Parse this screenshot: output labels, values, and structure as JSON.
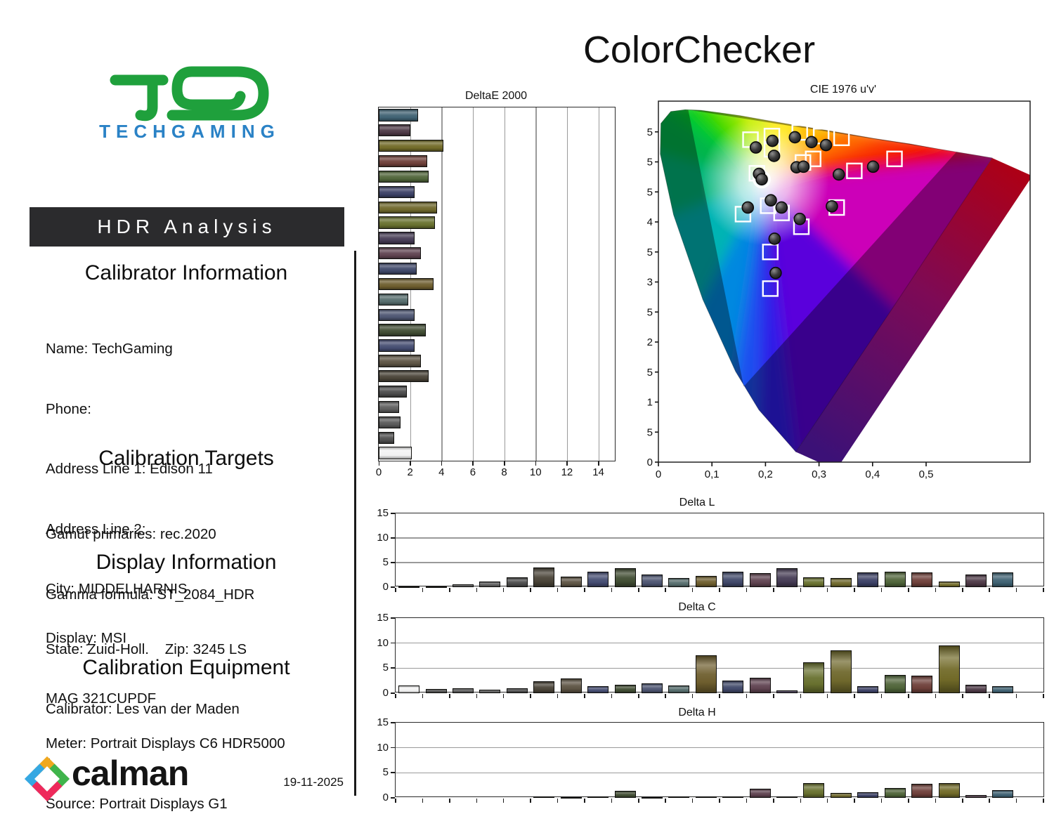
{
  "report_title": "ColorChecker",
  "logo": {
    "brand": "TECHGAMING",
    "mark_color": "#1fa03c",
    "text_color": "#2a82c6"
  },
  "banner": {
    "label": "HDR Analysis",
    "bg": "#2b2b2d"
  },
  "sections": {
    "calibrator": {
      "heading": "Calibrator Information",
      "lines": [
        "Name: TechGaming",
        "Phone:",
        "Address Line 1: Edison 11",
        "Address Line 2:",
        "City: MIDDELHARNIS",
        "State: Zuid-Holl.    Zip: 3245 LS",
        "Calibrator: Les van der Maden"
      ]
    },
    "targets": {
      "heading": "Calibration Targets",
      "lines": [
        "Gamut primaries: rec.2020",
        "Gamma formula: ST_2084_HDR"
      ]
    },
    "display": {
      "heading": "Display Information",
      "lines": [
        "Display: MSI",
        "MAG 321CUPDF",
        "-"
      ]
    },
    "equipment": {
      "heading": "Calibration Equipment",
      "lines": [
        "Meter: Portrait Displays C6 HDR5000",
        "Source: Portrait Displays G1"
      ]
    }
  },
  "footer": {
    "brand": "calman",
    "date": "19-11-2025",
    "icon_colors": {
      "top": "#f0a81e",
      "left": "#35a8e2",
      "right": "#3fb44b",
      "bottom": "#ee2a5b"
    }
  },
  "patches": {
    "colors": [
      "#f2f2f2",
      "#4f4f4f",
      "#595959",
      "#5e5e5e",
      "#4b4b4b",
      "#4a4438",
      "#5d5444",
      "#454d72",
      "#414d33",
      "#4d5571",
      "#566d6d",
      "#6e5e2e",
      "#404869",
      "#5f4350",
      "#463c55",
      "#68702f",
      "#6f682c",
      "#3c4166",
      "#50653a",
      "#6e403a",
      "#716a28",
      "#4e3a47",
      "#3f6273"
    ]
  },
  "chart_data": [
    {
      "id": "delta_e_2000",
      "type": "bar",
      "orientation": "horizontal",
      "title": "DeltaE 2000",
      "xlim": [
        0,
        15.05
      ],
      "x_ticks": [
        "0",
        "2",
        "4",
        "6",
        "8",
        "10",
        "12",
        "14"
      ],
      "x_tick_values": [
        0,
        2,
        4,
        6,
        8,
        10,
        12,
        14
      ],
      "grid": true,
      "display_order": "reversed-patches",
      "values_by_patch": [
        2.1,
        1.0,
        1.4,
        1.3,
        1.8,
        3.2,
        2.7,
        2.3,
        3.0,
        2.3,
        1.9,
        3.5,
        2.4,
        2.7,
        2.3,
        3.6,
        3.7,
        2.3,
        3.2,
        3.1,
        4.1,
        2.0,
        2.5
      ]
    },
    {
      "id": "cie_1976_uv",
      "type": "scatter",
      "title": "CIE 1976 u'v'",
      "xlim": [
        0,
        0.694
      ],
      "ylim": [
        0,
        0.601
      ],
      "x_tick_labels": [
        "0",
        "0,1",
        "0,2",
        "0,3",
        "0,4",
        "0,5"
      ],
      "y_tick_labels": [
        "0",
        "0,05",
        "0,1",
        "0,15",
        "0,2",
        "0,25",
        "0,3",
        "0,35",
        "0,4",
        "0,45",
        "0,5",
        "0,55"
      ],
      "gamut": "rec.2020",
      "gamut_triangle": [
        [
          0.0556,
          0.5868
        ],
        [
          0.5566,
          0.5165
        ],
        [
          0.1593,
          0.1258
        ]
      ],
      "white_point": [
        0.193,
        0.471
      ],
      "targets": [
        [
          0.172,
          0.537
        ],
        [
          0.212,
          0.543
        ],
        [
          0.264,
          0.549
        ],
        [
          0.304,
          0.543
        ],
        [
          0.342,
          0.54
        ],
        [
          0.212,
          0.521
        ],
        [
          0.27,
          0.499
        ],
        [
          0.289,
          0.505
        ],
        [
          0.366,
          0.485
        ],
        [
          0.441,
          0.505
        ],
        [
          0.184,
          0.481
        ],
        [
          0.205,
          0.427
        ],
        [
          0.158,
          0.413
        ],
        [
          0.23,
          0.415
        ],
        [
          0.267,
          0.392
        ],
        [
          0.333,
          0.424
        ],
        [
          0.209,
          0.35
        ],
        [
          0.209,
          0.289
        ]
      ],
      "measurements": [
        [
          0.182,
          0.524
        ],
        [
          0.213,
          0.535
        ],
        [
          0.216,
          0.51
        ],
        [
          0.255,
          0.541
        ],
        [
          0.286,
          0.533
        ],
        [
          0.313,
          0.528
        ],
        [
          0.258,
          0.491
        ],
        [
          0.271,
          0.492
        ],
        [
          0.337,
          0.479
        ],
        [
          0.401,
          0.492
        ],
        [
          0.188,
          0.48
        ],
        [
          0.193,
          0.471
        ],
        [
          0.21,
          0.436
        ],
        [
          0.167,
          0.424
        ],
        [
          0.23,
          0.424
        ],
        [
          0.264,
          0.405
        ],
        [
          0.324,
          0.426
        ],
        [
          0.217,
          0.372
        ],
        [
          0.219,
          0.315
        ]
      ]
    },
    {
      "id": "delta_l",
      "type": "bar",
      "title": "Delta L",
      "ylim": [
        0,
        15
      ],
      "y_ticks": [
        "0",
        "5",
        "10",
        "15"
      ],
      "slots": 24,
      "values": [
        0.05,
        0.1,
        0.55,
        1.2,
        2.0,
        4.0,
        2.2,
        3.1,
        3.8,
        2.6,
        1.9,
        2.3,
        3.1,
        2.8,
        3.8,
        2.0,
        1.8,
        3.0,
        3.2,
        3.0,
        1.1,
        2.6,
        3.0
      ]
    },
    {
      "id": "delta_c",
      "type": "bar",
      "title": "Delta C",
      "ylim": [
        0,
        15
      ],
      "y_ticks": [
        "0",
        "5",
        "10",
        "15"
      ],
      "slots": 24,
      "values": [
        1.6,
        0.8,
        1.05,
        0.7,
        0.95,
        2.4,
        3.0,
        1.35,
        1.7,
        1.95,
        1.55,
        7.6,
        2.55,
        3.15,
        0.5,
        6.2,
        8.6,
        1.35,
        3.6,
        3.55,
        9.5,
        1.75,
        1.35
      ]
    },
    {
      "id": "delta_h",
      "type": "bar",
      "title": "Delta H",
      "ylim": [
        0,
        15
      ],
      "y_ticks": [
        "0",
        "5",
        "10",
        "15"
      ],
      "slots": 24,
      "values": [
        0,
        0,
        0,
        0,
        0,
        0.3,
        0.05,
        0.3,
        1.35,
        0.05,
        0.3,
        0.3,
        0.3,
        1.8,
        0.3,
        3.0,
        1.0,
        1.1,
        2.0,
        2.8,
        3.0,
        0.5,
        1.5
      ]
    }
  ]
}
